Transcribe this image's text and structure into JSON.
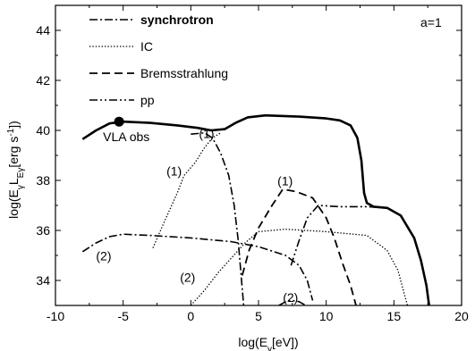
{
  "chart_data": {
    "type": "line",
    "xlabel": "log(Eγ[eV])",
    "ylabel": "log(EγLEγ[erg s⁻¹])",
    "xlim": [
      -10,
      20
    ],
    "ylim": [
      33,
      45
    ],
    "x_ticks": [
      -10,
      -5,
      0,
      5,
      10,
      15,
      20
    ],
    "y_ticks": [
      34,
      36,
      38,
      40,
      42,
      44
    ],
    "x_tick_labels": [
      "-10",
      "-5",
      "0",
      "5",
      "10",
      "15",
      "20"
    ],
    "y_tick_labels": [
      "34",
      "36",
      "38",
      "40",
      "42",
      "44"
    ],
    "grid": false,
    "legend_position": "top-left",
    "corner_label": "a=1",
    "legend": [
      {
        "label": "synchrotron",
        "style": "dashdot",
        "bold": true
      },
      {
        "label": "IC",
        "style": "dotted",
        "bold": false
      },
      {
        "label": "Bremsstrahlung",
        "style": "dashed",
        "bold": false
      },
      {
        "label": "pp",
        "style": "dashdotdot",
        "bold": false
      }
    ],
    "series": [
      {
        "style": "solid-thick",
        "points": [
          [
            -8,
            39.65
          ],
          [
            -7,
            40.0
          ],
          [
            -6,
            40.28
          ],
          [
            -5,
            40.35
          ],
          [
            -3,
            40.3
          ],
          [
            -1,
            40.2
          ],
          [
            0.5,
            40.1
          ],
          [
            1.5,
            40.0
          ],
          [
            2.5,
            40.05
          ],
          [
            3.3,
            40.3
          ],
          [
            4.2,
            40.52
          ],
          [
            5.5,
            40.6
          ],
          [
            8,
            40.55
          ],
          [
            10,
            40.48
          ],
          [
            11,
            40.4
          ],
          [
            11.8,
            40.2
          ],
          [
            12.3,
            39.7
          ],
          [
            12.6,
            38.8
          ],
          [
            12.8,
            37.5
          ],
          [
            13.0,
            37.1
          ],
          [
            13.5,
            36.95
          ],
          [
            14.5,
            36.9
          ],
          [
            15.5,
            36.6
          ],
          [
            16.5,
            35.7
          ],
          [
            17.0,
            34.8
          ],
          [
            17.4,
            33.8
          ],
          [
            17.6,
            33.0
          ]
        ]
      },
      {
        "style": "dashdot",
        "points": [
          [
            0,
            39.85
          ],
          [
            1,
            39.9
          ],
          [
            1.6,
            39.7
          ],
          [
            2.2,
            39.1
          ],
          [
            2.8,
            38.2
          ],
          [
            3.2,
            37.0
          ],
          [
            3.5,
            35.6
          ],
          [
            3.7,
            34.3
          ],
          [
            3.9,
            33.0
          ]
        ]
      },
      {
        "style": "dotted",
        "points": [
          [
            -2.8,
            35.3
          ],
          [
            -2.0,
            36.3
          ],
          [
            -1.0,
            37.5
          ],
          [
            -0.5,
            38.2
          ],
          [
            0.3,
            38.7
          ],
          [
            1.0,
            39.3
          ],
          [
            1.6,
            39.7
          ],
          [
            2.2,
            39.9
          ]
        ]
      },
      {
        "style": "dashed",
        "points": [
          [
            3.8,
            34.2
          ],
          [
            4.3,
            35.2
          ],
          [
            5.0,
            36.1
          ],
          [
            6.0,
            37.0
          ],
          [
            6.8,
            37.65
          ],
          [
            7.8,
            37.55
          ],
          [
            9.0,
            37.3
          ],
          [
            10.0,
            36.5
          ],
          [
            10.6,
            35.7
          ],
          [
            11.2,
            34.7
          ],
          [
            11.8,
            33.8
          ],
          [
            12.2,
            33.0
          ]
        ]
      },
      {
        "style": "dashdotdot",
        "points": [
          [
            7.4,
            34.6
          ],
          [
            8.0,
            35.6
          ],
          [
            8.6,
            36.5
          ],
          [
            9.4,
            37.0
          ],
          [
            11,
            36.95
          ],
          [
            13,
            36.95
          ],
          [
            14.5,
            36.9
          ]
        ]
      },
      {
        "style": "dashdot",
        "points": [
          [
            -8,
            35.15
          ],
          [
            -7,
            35.5
          ],
          [
            -6,
            35.75
          ],
          [
            -5,
            35.85
          ],
          [
            -3,
            35.8
          ],
          [
            0,
            35.7
          ],
          [
            3,
            35.55
          ],
          [
            5,
            35.35
          ],
          [
            7,
            35.0
          ],
          [
            8,
            34.6
          ],
          [
            8.6,
            34.0
          ],
          [
            9,
            33.2
          ]
        ]
      },
      {
        "style": "dotted",
        "points": [
          [
            0,
            33.0
          ],
          [
            1,
            33.6
          ],
          [
            2,
            34.3
          ],
          [
            3,
            34.9
          ],
          [
            4,
            35.5
          ],
          [
            5,
            35.95
          ],
          [
            7,
            36.05
          ],
          [
            10,
            35.95
          ],
          [
            13,
            35.8
          ],
          [
            14.5,
            35.2
          ],
          [
            15.3,
            34.4
          ],
          [
            15.8,
            33.4
          ],
          [
            16.0,
            33.0
          ]
        ]
      },
      {
        "style": "dashdotdot",
        "points": [
          [
            6.5,
            33.0
          ],
          [
            7.0,
            33.15
          ],
          [
            7.5,
            33.2
          ],
          [
            8.0,
            33.15
          ],
          [
            8.5,
            33.0
          ]
        ]
      }
    ],
    "markers": [
      {
        "label": "VLA obs",
        "x": -5.3,
        "y": 40.35
      }
    ],
    "annotations": [
      {
        "text": "(1)",
        "x": 0.6,
        "y": 39.7
      },
      {
        "text": "(1)",
        "x": -1.8,
        "y": 38.2
      },
      {
        "text": "(1)",
        "x": 6.4,
        "y": 37.8
      },
      {
        "text": "(2)",
        "x": -7.0,
        "y": 34.8
      },
      {
        "text": "(2)",
        "x": -0.8,
        "y": 33.95
      },
      {
        "text": "(2)",
        "x": 6.8,
        "y": 33.15
      }
    ]
  }
}
